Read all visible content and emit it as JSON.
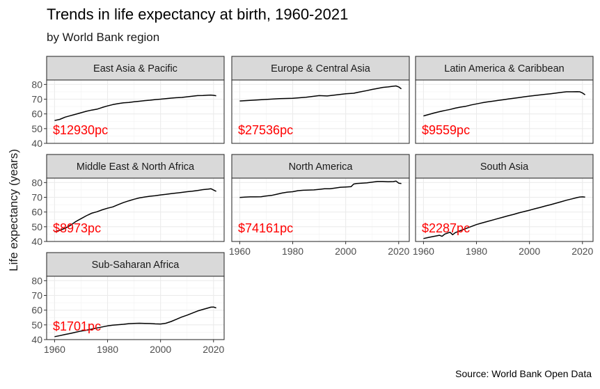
{
  "title": "Trends in life expectancy at birth, 1960-2021",
  "subtitle": "by World Bank region",
  "caption": "Source: World Bank Open Data",
  "chart_data": {
    "type": "line",
    "ylabel": "Life expectancy (years)",
    "xlim": [
      1960,
      2021
    ],
    "ylim": [
      40,
      83
    ],
    "x_ticks": [
      1960,
      1980,
      2000,
      2020
    ],
    "y_ticks": [
      40,
      50,
      60,
      70,
      80
    ],
    "grid": true,
    "facets": [
      {
        "name": "East Asia & Pacific",
        "label": "$12930pc",
        "points": [
          [
            1960,
            55.5
          ],
          [
            1962,
            56.3
          ],
          [
            1964,
            57.8
          ],
          [
            1966,
            58.8
          ],
          [
            1968,
            59.8
          ],
          [
            1970,
            60.8
          ],
          [
            1972,
            61.8
          ],
          [
            1974,
            62.6
          ],
          [
            1976,
            63.2
          ],
          [
            1978,
            64.4
          ],
          [
            1980,
            65.4
          ],
          [
            1982,
            66.3
          ],
          [
            1984,
            67.0
          ],
          [
            1986,
            67.5
          ],
          [
            1988,
            67.8
          ],
          [
            1990,
            68.2
          ],
          [
            1992,
            68.6
          ],
          [
            1994,
            69.0
          ],
          [
            1996,
            69.3
          ],
          [
            1998,
            69.7
          ],
          [
            2000,
            70.0
          ],
          [
            2002,
            70.4
          ],
          [
            2004,
            70.7
          ],
          [
            2006,
            71.0
          ],
          [
            2008,
            71.2
          ],
          [
            2010,
            71.6
          ],
          [
            2012,
            72.0
          ],
          [
            2014,
            72.4
          ],
          [
            2016,
            72.5
          ],
          [
            2018,
            72.7
          ],
          [
            2019,
            72.8
          ],
          [
            2020,
            72.6
          ],
          [
            2021,
            72.3
          ]
        ]
      },
      {
        "name": "Europe & Central Asia",
        "label": "$27536pc",
        "points": [
          [
            1960,
            68.8
          ],
          [
            1965,
            69.3
          ],
          [
            1970,
            69.8
          ],
          [
            1975,
            70.4
          ],
          [
            1980,
            70.6
          ],
          [
            1985,
            71.3
          ],
          [
            1990,
            72.4
          ],
          [
            1993,
            72.2
          ],
          [
            1995,
            72.6
          ],
          [
            2000,
            73.7
          ],
          [
            2003,
            74.0
          ],
          [
            2005,
            74.8
          ],
          [
            2008,
            75.8
          ],
          [
            2010,
            76.6
          ],
          [
            2012,
            77.3
          ],
          [
            2014,
            78.0
          ],
          [
            2016,
            78.3
          ],
          [
            2018,
            78.8
          ],
          [
            2019,
            79.0
          ],
          [
            2020,
            78.3
          ],
          [
            2021,
            77.0
          ]
        ]
      },
      {
        "name": "Latin America & Caribbean",
        "label": "$9559pc",
        "points": [
          [
            1960,
            58.6
          ],
          [
            1962,
            59.6
          ],
          [
            1964,
            60.6
          ],
          [
            1966,
            61.5
          ],
          [
            1968,
            62.3
          ],
          [
            1970,
            63.0
          ],
          [
            1972,
            63.9
          ],
          [
            1974,
            64.6
          ],
          [
            1976,
            65.2
          ],
          [
            1978,
            66.1
          ],
          [
            1980,
            66.8
          ],
          [
            1982,
            67.5
          ],
          [
            1984,
            68.1
          ],
          [
            1986,
            68.6
          ],
          [
            1988,
            69.1
          ],
          [
            1990,
            69.6
          ],
          [
            1992,
            70.1
          ],
          [
            1994,
            70.6
          ],
          [
            1996,
            71.1
          ],
          [
            1998,
            71.6
          ],
          [
            2000,
            72.1
          ],
          [
            2002,
            72.5
          ],
          [
            2004,
            72.9
          ],
          [
            2006,
            73.3
          ],
          [
            2008,
            73.7
          ],
          [
            2010,
            74.1
          ],
          [
            2012,
            74.6
          ],
          [
            2014,
            75.0
          ],
          [
            2016,
            75.0
          ],
          [
            2018,
            75.1
          ],
          [
            2019,
            75.0
          ],
          [
            2020,
            74.2
          ],
          [
            2021,
            73.0
          ]
        ]
      },
      {
        "name": "Middle East & North Africa",
        "label": "$8973pc",
        "points": [
          [
            1960,
            46.5
          ],
          [
            1962,
            47.6
          ],
          [
            1964,
            49.0
          ],
          [
            1966,
            51.0
          ],
          [
            1968,
            53.5
          ],
          [
            1970,
            55.5
          ],
          [
            1972,
            57.5
          ],
          [
            1974,
            59.2
          ],
          [
            1976,
            60.2
          ],
          [
            1978,
            61.5
          ],
          [
            1980,
            62.6
          ],
          [
            1982,
            63.5
          ],
          [
            1984,
            65.0
          ],
          [
            1986,
            66.4
          ],
          [
            1988,
            67.6
          ],
          [
            1990,
            68.7
          ],
          [
            1992,
            69.6
          ],
          [
            1994,
            70.2
          ],
          [
            1996,
            70.7
          ],
          [
            1998,
            71.1
          ],
          [
            2000,
            71.6
          ],
          [
            2002,
            72.0
          ],
          [
            2004,
            72.5
          ],
          [
            2006,
            72.9
          ],
          [
            2008,
            73.3
          ],
          [
            2010,
            73.8
          ],
          [
            2012,
            74.1
          ],
          [
            2014,
            74.6
          ],
          [
            2016,
            75.2
          ],
          [
            2018,
            75.6
          ],
          [
            2019,
            75.8
          ],
          [
            2020,
            74.9
          ],
          [
            2021,
            74.0
          ]
        ]
      },
      {
        "name": "North America",
        "label": "$74161pc",
        "points": [
          [
            1960,
            69.9
          ],
          [
            1962,
            70.1
          ],
          [
            1964,
            70.3
          ],
          [
            1966,
            70.3
          ],
          [
            1968,
            70.4
          ],
          [
            1970,
            70.9
          ],
          [
            1972,
            71.3
          ],
          [
            1974,
            72.1
          ],
          [
            1976,
            72.9
          ],
          [
            1978,
            73.5
          ],
          [
            1980,
            73.8
          ],
          [
            1982,
            74.5
          ],
          [
            1984,
            74.8
          ],
          [
            1986,
            74.9
          ],
          [
            1988,
            75.0
          ],
          [
            1990,
            75.4
          ],
          [
            1992,
            75.8
          ],
          [
            1994,
            75.8
          ],
          [
            1996,
            76.3
          ],
          [
            1998,
            76.8
          ],
          [
            2000,
            77.0
          ],
          [
            2002,
            77.2
          ],
          [
            2003,
            79.0
          ],
          [
            2004,
            79.3
          ],
          [
            2006,
            79.6
          ],
          [
            2008,
            79.8
          ],
          [
            2010,
            80.3
          ],
          [
            2011,
            80.5
          ],
          [
            2012,
            80.8
          ],
          [
            2014,
            80.8
          ],
          [
            2016,
            80.6
          ],
          [
            2018,
            80.7
          ],
          [
            2019,
            81.0
          ],
          [
            2020,
            79.6
          ],
          [
            2021,
            79.3
          ]
        ]
      },
      {
        "name": "South Asia",
        "label": "$2287pc",
        "points": [
          [
            1960,
            42.0
          ],
          [
            1962,
            42.8
          ],
          [
            1964,
            43.5
          ],
          [
            1966,
            44.2
          ],
          [
            1967,
            43.5
          ],
          [
            1968,
            45.0
          ],
          [
            1970,
            46.3
          ],
          [
            1971,
            44.6
          ],
          [
            1972,
            46.0
          ],
          [
            1974,
            47.4
          ],
          [
            1976,
            48.8
          ],
          [
            1978,
            50.1
          ],
          [
            1980,
            51.5
          ],
          [
            1982,
            52.5
          ],
          [
            1984,
            53.5
          ],
          [
            1986,
            54.5
          ],
          [
            1988,
            55.5
          ],
          [
            1990,
            56.5
          ],
          [
            1992,
            57.5
          ],
          [
            1994,
            58.4
          ],
          [
            1996,
            59.4
          ],
          [
            1998,
            60.3
          ],
          [
            2000,
            61.2
          ],
          [
            2002,
            62.2
          ],
          [
            2004,
            63.1
          ],
          [
            2006,
            64.1
          ],
          [
            2008,
            65.0
          ],
          [
            2010,
            66.0
          ],
          [
            2012,
            67.0
          ],
          [
            2014,
            68.0
          ],
          [
            2016,
            68.9
          ],
          [
            2018,
            69.8
          ],
          [
            2019,
            70.2
          ],
          [
            2020,
            70.3
          ],
          [
            2021,
            70.1
          ]
        ]
      },
      {
        "name": "Sub-Saharan Africa",
        "label": "$1701pc",
        "points": [
          [
            1960,
            42.0
          ],
          [
            1962,
            42.7
          ],
          [
            1964,
            43.5
          ],
          [
            1966,
            44.2
          ],
          [
            1968,
            45.0
          ],
          [
            1970,
            45.8
          ],
          [
            1972,
            46.4
          ],
          [
            1974,
            47.1
          ],
          [
            1976,
            47.9
          ],
          [
            1978,
            48.6
          ],
          [
            1980,
            49.3
          ],
          [
            1982,
            49.8
          ],
          [
            1984,
            50.1
          ],
          [
            1986,
            50.4
          ],
          [
            1988,
            50.8
          ],
          [
            1990,
            51.0
          ],
          [
            1992,
            51.1
          ],
          [
            1994,
            51.0
          ],
          [
            1996,
            50.9
          ],
          [
            1998,
            50.7
          ],
          [
            2000,
            50.6
          ],
          [
            2002,
            51.1
          ],
          [
            2004,
            52.3
          ],
          [
            2006,
            53.8
          ],
          [
            2008,
            55.3
          ],
          [
            2010,
            56.6
          ],
          [
            2012,
            58.0
          ],
          [
            2014,
            59.4
          ],
          [
            2016,
            60.5
          ],
          [
            2018,
            61.5
          ],
          [
            2019,
            62.0
          ],
          [
            2020,
            62.1
          ],
          [
            2021,
            61.5
          ]
        ]
      }
    ]
  }
}
